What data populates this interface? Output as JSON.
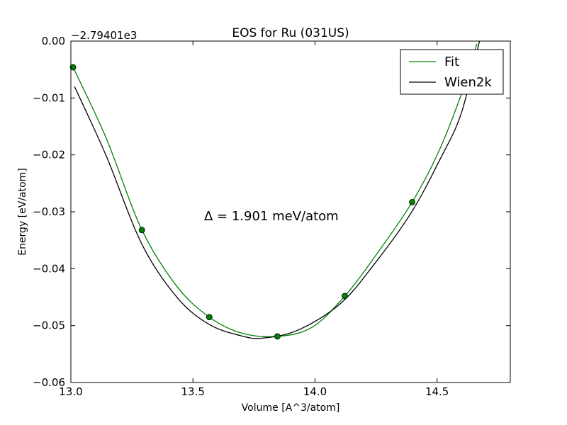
{
  "chart_data": {
    "type": "line",
    "title": "EOS for Ru (031US)",
    "xlabel": "Volume [A^3/atom]",
    "ylabel": "Energy [eV/atom]",
    "offset_text": "−2.79401e3",
    "annotation": "Δ = 1.901 meV/atom",
    "xlim": [
      13.0,
      14.8
    ],
    "ylim": [
      -0.06,
      0.0
    ],
    "xticks": [
      {
        "value": 13,
        "label": "13.0"
      },
      {
        "value": 13.5,
        "label": "13.5"
      },
      {
        "value": 14,
        "label": "14.0"
      },
      {
        "value": 14.5,
        "label": "14.5"
      }
    ],
    "yticks": [
      {
        "value": -0.06,
        "label": "−0.06"
      },
      {
        "value": -0.05,
        "label": "−0.05"
      },
      {
        "value": -0.04,
        "label": "−0.04"
      },
      {
        "value": -0.03,
        "label": "−0.03"
      },
      {
        "value": -0.02,
        "label": "−0.02"
      },
      {
        "value": -0.01,
        "label": "−0.01"
      },
      {
        "value": 0,
        "label": "0.00"
      }
    ],
    "legend": "upper right",
    "series": [
      {
        "name": "Fit",
        "color": "#008000",
        "x": [
          13.009,
          13.145,
          13.291,
          13.436,
          13.567,
          13.698,
          13.846,
          13.988,
          14.122,
          14.25,
          14.398,
          14.512,
          14.613,
          14.663
        ],
        "values": [
          -0.0046,
          -0.0171,
          -0.0332,
          -0.0432,
          -0.0485,
          -0.0513,
          -0.0519,
          -0.0503,
          -0.0448,
          -0.0376,
          -0.0283,
          -0.0189,
          -0.0077,
          -0.0005
        ]
      },
      {
        "name": "Wien2k",
        "color": "#000000",
        "x": [
          13.015,
          13.145,
          13.291,
          13.436,
          13.567,
          13.698,
          13.785,
          13.93,
          14.105,
          14.25,
          14.395,
          14.512,
          14.599,
          14.674
        ],
        "values": [
          -0.008,
          -0.0202,
          -0.0357,
          -0.0451,
          -0.0498,
          -0.0518,
          -0.0522,
          -0.0508,
          -0.0461,
          -0.0388,
          -0.0301,
          -0.0208,
          -0.0127,
          0.0
        ]
      }
    ],
    "points": {
      "color": "#008000",
      "x": [
        13.009,
        13.291,
        13.567,
        13.846,
        14.122,
        14.398
      ],
      "values": [
        -0.0046,
        -0.0332,
        -0.0485,
        -0.0519,
        -0.0448,
        -0.0283
      ]
    }
  }
}
